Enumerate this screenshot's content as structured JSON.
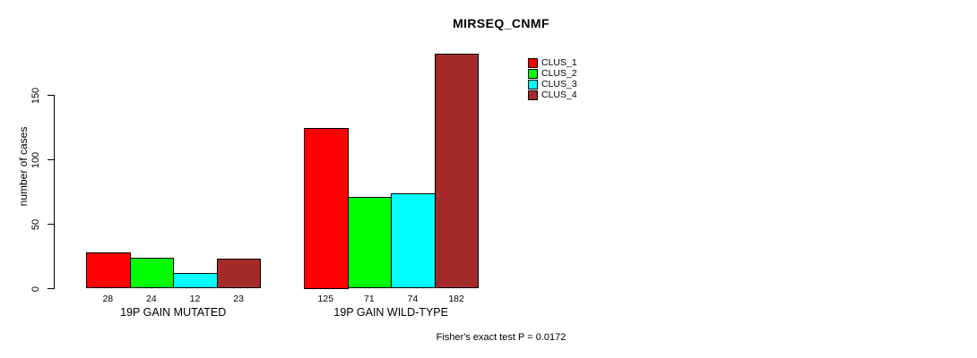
{
  "chart_data": {
    "type": "bar",
    "title": "MIRSEQ_CNMF",
    "ylabel": "number of cases",
    "xlabel": "",
    "categories": [
      "19P GAIN MUTATED",
      "19P GAIN WILD-TYPE"
    ],
    "series": [
      {
        "name": "CLUS_1",
        "color": "#ff0000",
        "values": [
          28,
          125
        ]
      },
      {
        "name": "CLUS_2",
        "color": "#00ff00",
        "values": [
          24,
          71
        ]
      },
      {
        "name": "CLUS_3",
        "color": "#00ffff",
        "values": [
          12,
          74
        ]
      },
      {
        "name": "CLUS_4",
        "color": "#a52a2a",
        "values": [
          23,
          182
        ]
      }
    ],
    "yticks": [
      0,
      50,
      100,
      150
    ],
    "ylim": [
      0,
      187
    ],
    "grid": false,
    "bar_borders_color": "#000000",
    "legend_position": "top-right",
    "bar_value_labels_shown": true,
    "footnote": "Fisher's exact test P = 0.0172"
  }
}
